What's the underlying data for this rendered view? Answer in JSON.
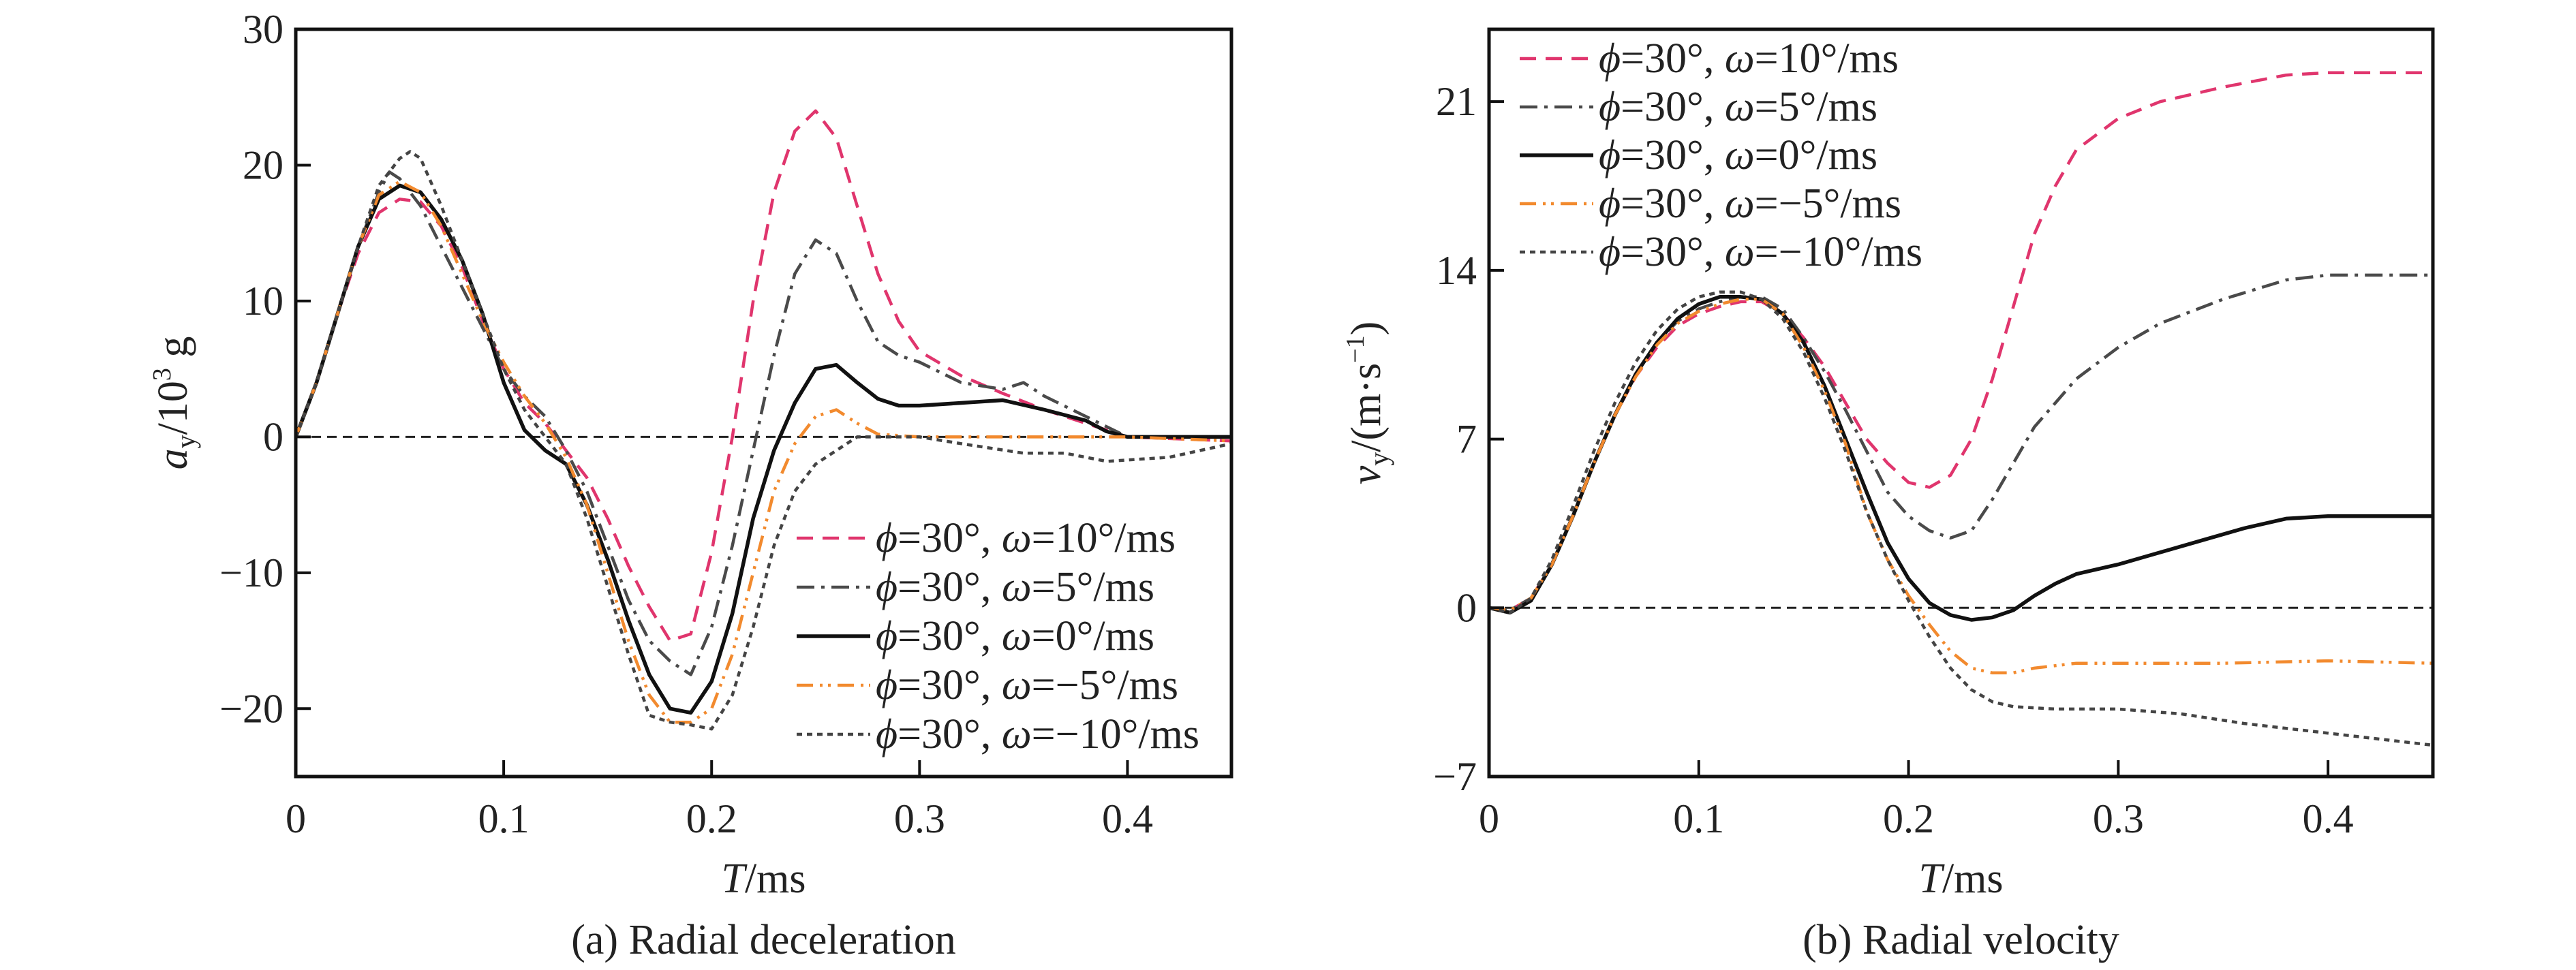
{
  "chart_data": [
    {
      "type": "line",
      "caption": "(a) Radial deceleration",
      "xlabel_var": "T",
      "xlabel_unit": "/ms",
      "ylabel_var": "a",
      "ylabel_sub": "y",
      "ylabel_unit": "/10",
      "ylabel_sup": "3",
      "ylabel_tail": " g",
      "xlim": [
        0,
        0.45
      ],
      "ylim": [
        -25,
        30
      ],
      "xticks": [
        0,
        0.1,
        0.2,
        0.3,
        0.4
      ],
      "xtick_labels": [
        "0",
        "0.1",
        "0.2",
        "0.3",
        "0.4"
      ],
      "yticks": [
        -20,
        -10,
        0,
        10,
        20,
        30
      ],
      "ytick_labels": [
        "−20",
        "−10",
        "0",
        "10",
        "20",
        "30"
      ],
      "zero_line": true,
      "legend_position": "bottom-right",
      "series": [
        {
          "name": "ϕ=30°, ω=10°/ms",
          "phi": "ϕ",
          "phi_val": "=30°, ",
          "omega": "ω",
          "omega_val": "=10°/ms",
          "color": "#e0356d",
          "dash": "24,14",
          "x": [
            0,
            0.01,
            0.02,
            0.03,
            0.04,
            0.05,
            0.06,
            0.07,
            0.08,
            0.09,
            0.1,
            0.11,
            0.12,
            0.13,
            0.14,
            0.15,
            0.16,
            0.17,
            0.18,
            0.19,
            0.2,
            0.21,
            0.22,
            0.23,
            0.24,
            0.25,
            0.26,
            0.27,
            0.28,
            0.29,
            0.3,
            0.32,
            0.34,
            0.36,
            0.38,
            0.4,
            0.45
          ],
          "y": [
            0,
            4,
            9,
            13.5,
            16.5,
            17.5,
            17.3,
            15.5,
            12.5,
            8.5,
            5,
            2.5,
            1,
            -1,
            -3,
            -6,
            -9.5,
            -12.5,
            -15,
            -14.5,
            -8.5,
            0,
            10,
            18,
            22.5,
            24,
            22,
            17,
            12,
            8.5,
            6.3,
            4.5,
            3.2,
            2,
            1,
            0,
            -0.3
          ]
        },
        {
          "name": "ϕ=30°, ω=5°/ms",
          "phi": "ϕ",
          "phi_val": "=30°, ",
          "omega": "ω",
          "omega_val": "=5°/ms",
          "color": "#4a4a4a",
          "dash": "26,10,5,10",
          "x": [
            0,
            0.01,
            0.02,
            0.03,
            0.04,
            0.045,
            0.05,
            0.06,
            0.07,
            0.08,
            0.09,
            0.1,
            0.11,
            0.12,
            0.13,
            0.14,
            0.15,
            0.16,
            0.17,
            0.18,
            0.19,
            0.2,
            0.21,
            0.22,
            0.23,
            0.24,
            0.25,
            0.26,
            0.27,
            0.28,
            0.29,
            0.3,
            0.32,
            0.34,
            0.35,
            0.36,
            0.38,
            0.4,
            0.45
          ],
          "y": [
            0,
            4,
            9,
            14,
            18,
            19.5,
            19,
            17,
            14,
            11,
            8,
            5,
            3,
            1.5,
            -1,
            -4,
            -8,
            -12,
            -15,
            -16.5,
            -17.5,
            -14,
            -8,
            -1,
            6,
            12,
            14.5,
            13.5,
            10,
            7,
            6,
            5.5,
            4,
            3.5,
            4,
            3,
            1.5,
            0,
            0
          ]
        },
        {
          "name": "ϕ=30°, ω=0°/ms",
          "phi": "ϕ",
          "phi_val": "=30°, ",
          "omega": "ω",
          "omega_val": "=0°/ms",
          "color": "#111111",
          "dash": "",
          "x": [
            0,
            0.01,
            0.02,
            0.03,
            0.04,
            0.05,
            0.06,
            0.07,
            0.08,
            0.09,
            0.1,
            0.11,
            0.12,
            0.13,
            0.14,
            0.15,
            0.16,
            0.17,
            0.18,
            0.19,
            0.2,
            0.21,
            0.22,
            0.23,
            0.24,
            0.25,
            0.26,
            0.27,
            0.28,
            0.29,
            0.3,
            0.32,
            0.34,
            0.36,
            0.38,
            0.39,
            0.4,
            0.45
          ],
          "y": [
            0,
            4,
            9,
            14,
            17.5,
            18.5,
            18,
            16,
            13,
            9,
            4,
            0.5,
            -1,
            -2,
            -5,
            -9,
            -13.5,
            -17.5,
            -20,
            -20.3,
            -18,
            -13,
            -6,
            -1,
            2.5,
            5,
            5.3,
            4,
            2.8,
            2.3,
            2.3,
            2.5,
            2.7,
            2,
            1.2,
            0.4,
            0,
            0
          ]
        },
        {
          "name": "ϕ=30°, ω=−5°/ms",
          "phi": "ϕ",
          "phi_val": "=30°, ",
          "omega": "ω",
          "omega_val": "=−5°/ms",
          "color": "#f28a2e",
          "dash": "24,10,4,8,4,10",
          "x": [
            0,
            0.01,
            0.02,
            0.03,
            0.04,
            0.05,
            0.06,
            0.07,
            0.08,
            0.09,
            0.1,
            0.11,
            0.12,
            0.13,
            0.14,
            0.15,
            0.16,
            0.17,
            0.18,
            0.19,
            0.2,
            0.21,
            0.22,
            0.23,
            0.24,
            0.25,
            0.26,
            0.27,
            0.28,
            0.3,
            0.35,
            0.4,
            0.45
          ],
          "y": [
            0,
            4,
            9,
            14,
            17.8,
            18.8,
            18,
            15.5,
            12,
            8.5,
            5.5,
            3,
            1,
            -1.5,
            -5,
            -10,
            -15,
            -19,
            -21,
            -21,
            -20,
            -16,
            -10,
            -4,
            -0.5,
            1.5,
            2,
            1,
            0.2,
            0,
            0,
            0,
            -0.3
          ]
        },
        {
          "name": "ϕ=30°, ω=−10°/ms",
          "phi": "ϕ",
          "phi_val": "=30°, ",
          "omega": "ω",
          "omega_val": "=−10°/ms",
          "color": "#444444",
          "dash": "8,7",
          "x": [
            0,
            0.01,
            0.02,
            0.03,
            0.04,
            0.05,
            0.055,
            0.06,
            0.07,
            0.08,
            0.09,
            0.1,
            0.11,
            0.12,
            0.13,
            0.14,
            0.15,
            0.16,
            0.17,
            0.18,
            0.19,
            0.2,
            0.21,
            0.22,
            0.23,
            0.24,
            0.25,
            0.26,
            0.27,
            0.3,
            0.32,
            0.35,
            0.37,
            0.39,
            0.42,
            0.45
          ],
          "y": [
            0,
            4,
            9,
            14,
            18.5,
            20.5,
            21,
            20.5,
            17,
            13,
            9,
            5,
            2,
            0,
            -2,
            -6,
            -11,
            -16,
            -20.5,
            -21,
            -21.2,
            -21.5,
            -19,
            -14,
            -8,
            -4,
            -2,
            -1,
            0,
            0,
            -0.5,
            -1.2,
            -1.2,
            -1.8,
            -1.5,
            -0.5
          ]
        }
      ]
    },
    {
      "type": "line",
      "caption": "(b) Radial velocity",
      "xlabel_var": "T",
      "xlabel_unit": "/ms",
      "ylabel_var": "v",
      "ylabel_sub": "y",
      "ylabel_unit": "/(m·s",
      "ylabel_sup": "−1",
      "ylabel_tail": ")",
      "xlim": [
        0,
        0.45
      ],
      "ylim": [
        -7,
        24
      ],
      "xticks": [
        0,
        0.1,
        0.2,
        0.3,
        0.4
      ],
      "xtick_labels": [
        "0",
        "0.1",
        "0.2",
        "0.3",
        "0.4"
      ],
      "yticks": [
        -7,
        0,
        7,
        14,
        21
      ],
      "ytick_labels": [
        "−7",
        "0",
        "7",
        "14",
        "21"
      ],
      "zero_line": true,
      "legend_position": "top-left",
      "series": [
        {
          "name": "ϕ=30°, ω=10°/ms",
          "phi": "ϕ",
          "phi_val": "=30°, ",
          "omega": "ω",
          "omega_val": "=10°/ms",
          "color": "#e0356d",
          "dash": "24,14",
          "x": [
            0,
            0.01,
            0.02,
            0.03,
            0.04,
            0.05,
            0.06,
            0.07,
            0.08,
            0.09,
            0.1,
            0.11,
            0.12,
            0.13,
            0.14,
            0.15,
            0.16,
            0.17,
            0.18,
            0.19,
            0.2,
            0.21,
            0.22,
            0.23,
            0.24,
            0.25,
            0.26,
            0.27,
            0.28,
            0.3,
            0.32,
            0.35,
            0.38,
            0.4,
            0.45
          ],
          "y": [
            0,
            -0.1,
            0.4,
            1.8,
            3.8,
            6,
            8,
            9.6,
            10.8,
            11.7,
            12.2,
            12.5,
            12.7,
            12.7,
            12.2,
            11.2,
            10,
            8.5,
            7,
            6,
            5.2,
            5,
            5.5,
            7,
            9.5,
            12.5,
            15.5,
            17.5,
            19,
            20.3,
            21,
            21.6,
            22.1,
            22.2,
            22.2
          ]
        },
        {
          "name": "ϕ=30°, ω=5°/ms",
          "phi": "ϕ",
          "phi_val": "=30°, ",
          "omega": "ω",
          "omega_val": "=5°/ms",
          "color": "#4a4a4a",
          "dash": "26,10,5,10",
          "x": [
            0,
            0.01,
            0.02,
            0.03,
            0.04,
            0.05,
            0.06,
            0.07,
            0.08,
            0.09,
            0.1,
            0.11,
            0.12,
            0.13,
            0.14,
            0.15,
            0.16,
            0.17,
            0.18,
            0.19,
            0.2,
            0.21,
            0.22,
            0.23,
            0.24,
            0.25,
            0.26,
            0.28,
            0.3,
            0.32,
            0.35,
            0.38,
            0.4,
            0.45
          ],
          "y": [
            0,
            -0.1,
            0.4,
            1.8,
            3.8,
            6,
            8,
            9.7,
            11,
            11.9,
            12.4,
            12.7,
            12.9,
            12.9,
            12.4,
            11.2,
            9.8,
            8.2,
            6.5,
            4.8,
            3.8,
            3.2,
            2.9,
            3.2,
            4.5,
            6,
            7.5,
            9.5,
            10.8,
            11.8,
            12.8,
            13.6,
            13.8,
            13.8
          ]
        },
        {
          "name": "ϕ=30°, ω=0°/ms",
          "phi": "ϕ",
          "phi_val": "=30°, ",
          "omega": "ω",
          "omega_val": "=0°/ms",
          "color": "#111111",
          "dash": "",
          "x": [
            0,
            0.01,
            0.02,
            0.03,
            0.04,
            0.05,
            0.06,
            0.07,
            0.08,
            0.09,
            0.1,
            0.11,
            0.12,
            0.13,
            0.14,
            0.15,
            0.16,
            0.17,
            0.18,
            0.19,
            0.2,
            0.21,
            0.22,
            0.23,
            0.24,
            0.25,
            0.26,
            0.27,
            0.28,
            0.3,
            0.32,
            0.34,
            0.36,
            0.38,
            0.4,
            0.45
          ],
          "y": [
            0,
            -0.2,
            0.3,
            1.8,
            3.8,
            6,
            8,
            9.7,
            11,
            12,
            12.6,
            12.9,
            12.9,
            12.8,
            12.2,
            11,
            9.2,
            7,
            4.8,
            2.7,
            1.2,
            0.2,
            -0.3,
            -0.5,
            -0.4,
            -0.1,
            0.5,
            1,
            1.4,
            1.8,
            2.3,
            2.8,
            3.3,
            3.7,
            3.8,
            3.8
          ]
        },
        {
          "name": "ϕ=30°, ω=−5°/ms",
          "phi": "ϕ",
          "phi_val": "=30°, ",
          "omega": "ω",
          "omega_val": "=−5°/ms",
          "color": "#f28a2e",
          "dash": "24,10,4,8,4,10",
          "x": [
            0,
            0.01,
            0.02,
            0.03,
            0.04,
            0.05,
            0.06,
            0.07,
            0.08,
            0.09,
            0.1,
            0.11,
            0.12,
            0.13,
            0.14,
            0.15,
            0.16,
            0.17,
            0.18,
            0.19,
            0.2,
            0.21,
            0.22,
            0.23,
            0.24,
            0.25,
            0.26,
            0.28,
            0.3,
            0.35,
            0.4,
            0.45
          ],
          "y": [
            0,
            -0.1,
            0.4,
            1.8,
            3.8,
            6,
            8,
            9.6,
            10.9,
            11.8,
            12.3,
            12.6,
            12.8,
            12.8,
            12.2,
            10.8,
            9,
            6.8,
            4,
            2,
            0.5,
            -0.7,
            -1.8,
            -2.5,
            -2.7,
            -2.7,
            -2.5,
            -2.3,
            -2.3,
            -2.3,
            -2.2,
            -2.3
          ]
        },
        {
          "name": "ϕ=30°, ω=−10°/ms",
          "phi": "ϕ",
          "phi_val": "=30°, ",
          "omega": "ω",
          "omega_val": "=−10°/ms",
          "color": "#444444",
          "dash": "8,7",
          "x": [
            0,
            0.01,
            0.02,
            0.03,
            0.04,
            0.05,
            0.06,
            0.07,
            0.08,
            0.09,
            0.1,
            0.11,
            0.12,
            0.13,
            0.14,
            0.15,
            0.16,
            0.17,
            0.18,
            0.19,
            0.2,
            0.21,
            0.22,
            0.23,
            0.24,
            0.25,
            0.27,
            0.3,
            0.33,
            0.36,
            0.4,
            0.45
          ],
          "y": [
            0,
            -0.2,
            0.4,
            2,
            4.2,
            6.5,
            8.5,
            10.2,
            11.5,
            12.4,
            12.9,
            13.1,
            13.1,
            12.8,
            12,
            10.6,
            8.7,
            6.5,
            4,
            2,
            0.3,
            -1.2,
            -2.5,
            -3.4,
            -3.9,
            -4.1,
            -4.2,
            -4.2,
            -4.4,
            -4.8,
            -5.2,
            -5.7
          ]
        }
      ]
    }
  ]
}
